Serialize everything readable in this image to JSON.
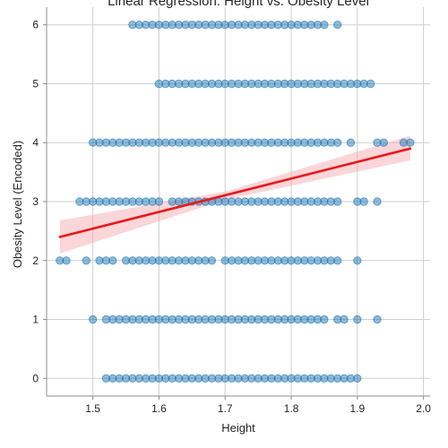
{
  "chart_data": {
    "type": "scatter",
    "title": "Linear Regression: Height vs. Obesity Level",
    "xlabel": "Height",
    "ylabel": "Obesity Level (Encoded)",
    "xlim": [
      1.43,
      2.01
    ],
    "ylim": [
      -0.3,
      6.3
    ],
    "xticks": [
      1.5,
      1.6,
      1.7,
      1.8,
      1.9,
      2.0
    ],
    "xtick_labels": [
      "1.5",
      "1.6",
      "1.7",
      "1.8",
      "1.9",
      "2.0"
    ],
    "yticks": [
      0,
      1,
      2,
      3,
      4,
      5,
      6
    ],
    "ytick_labels": [
      "0",
      "1",
      "2",
      "3",
      "4",
      "5",
      "6"
    ],
    "grid": true,
    "point_color": "#1f77b4",
    "line_color": "#e8191b",
    "band_color": "#f4a3a8",
    "series": [
      {
        "level": 0,
        "x": [
          1.52,
          1.53,
          1.54,
          1.55,
          1.56,
          1.57,
          1.58,
          1.59,
          1.6,
          1.61,
          1.62,
          1.63,
          1.64,
          1.65,
          1.66,
          1.67,
          1.68,
          1.69,
          1.7,
          1.71,
          1.72,
          1.73,
          1.74,
          1.75,
          1.76,
          1.77,
          1.78,
          1.79,
          1.8,
          1.81,
          1.82,
          1.83,
          1.84,
          1.85,
          1.86,
          1.87,
          1.88,
          1.89,
          1.9
        ]
      },
      {
        "level": 1,
        "x": [
          1.5,
          1.52,
          1.53,
          1.54,
          1.55,
          1.56,
          1.57,
          1.58,
          1.59,
          1.6,
          1.61,
          1.62,
          1.63,
          1.64,
          1.65,
          1.66,
          1.67,
          1.68,
          1.69,
          1.7,
          1.71,
          1.72,
          1.73,
          1.74,
          1.75,
          1.76,
          1.77,
          1.78,
          1.79,
          1.8,
          1.81,
          1.82,
          1.83,
          1.84,
          1.85,
          1.87,
          1.88,
          1.9,
          1.93
        ]
      },
      {
        "level": 2,
        "x": [
          1.45,
          1.46,
          1.49,
          1.51,
          1.52,
          1.53,
          1.55,
          1.56,
          1.57,
          1.58,
          1.59,
          1.6,
          1.61,
          1.62,
          1.63,
          1.64,
          1.65,
          1.66,
          1.67,
          1.68,
          1.7,
          1.71,
          1.72,
          1.73,
          1.74,
          1.75,
          1.76,
          1.77,
          1.78,
          1.79,
          1.8,
          1.81,
          1.82,
          1.83,
          1.84,
          1.85,
          1.86,
          1.87,
          1.9
        ]
      },
      {
        "level": 3,
        "x": [
          1.48,
          1.49,
          1.5,
          1.51,
          1.52,
          1.53,
          1.54,
          1.55,
          1.56,
          1.57,
          1.58,
          1.59,
          1.6,
          1.62,
          1.63,
          1.64,
          1.65,
          1.66,
          1.67,
          1.68,
          1.69,
          1.7,
          1.71,
          1.72,
          1.73,
          1.74,
          1.75,
          1.76,
          1.77,
          1.78,
          1.79,
          1.8,
          1.81,
          1.82,
          1.83,
          1.84,
          1.85,
          1.86,
          1.87,
          1.9,
          1.91,
          1.93
        ]
      },
      {
        "level": 4,
        "x": [
          1.5,
          1.51,
          1.52,
          1.53,
          1.54,
          1.55,
          1.56,
          1.57,
          1.58,
          1.59,
          1.6,
          1.61,
          1.62,
          1.63,
          1.64,
          1.65,
          1.66,
          1.67,
          1.68,
          1.69,
          1.7,
          1.71,
          1.72,
          1.73,
          1.74,
          1.75,
          1.76,
          1.77,
          1.78,
          1.79,
          1.8,
          1.81,
          1.82,
          1.83,
          1.84,
          1.85,
          1.86,
          1.87,
          1.89,
          1.93,
          1.94,
          1.97,
          1.98
        ]
      },
      {
        "level": 5,
        "x": [
          1.6,
          1.61,
          1.62,
          1.63,
          1.64,
          1.65,
          1.66,
          1.67,
          1.68,
          1.69,
          1.7,
          1.71,
          1.72,
          1.73,
          1.74,
          1.75,
          1.76,
          1.77,
          1.78,
          1.79,
          1.8,
          1.81,
          1.82,
          1.83,
          1.84,
          1.85,
          1.86,
          1.87,
          1.88,
          1.89,
          1.9,
          1.91,
          1.92
        ]
      },
      {
        "level": 6,
        "x": [
          1.56,
          1.57,
          1.58,
          1.59,
          1.6,
          1.61,
          1.62,
          1.63,
          1.64,
          1.65,
          1.66,
          1.67,
          1.68,
          1.69,
          1.7,
          1.71,
          1.72,
          1.73,
          1.74,
          1.75,
          1.76,
          1.77,
          1.78,
          1.79,
          1.8,
          1.81,
          1.82,
          1.83,
          1.84,
          1.85,
          1.87
        ]
      }
    ],
    "regression": {
      "x": [
        1.45,
        1.98
      ],
      "y": [
        2.4,
        3.9
      ],
      "band_upper": [
        2.68,
        4.12
      ],
      "band_lower": [
        2.12,
        3.7
      ],
      "band_mid_x": 1.7,
      "band_mid_upper": 3.17,
      "band_mid_lower": 3.03
    }
  }
}
